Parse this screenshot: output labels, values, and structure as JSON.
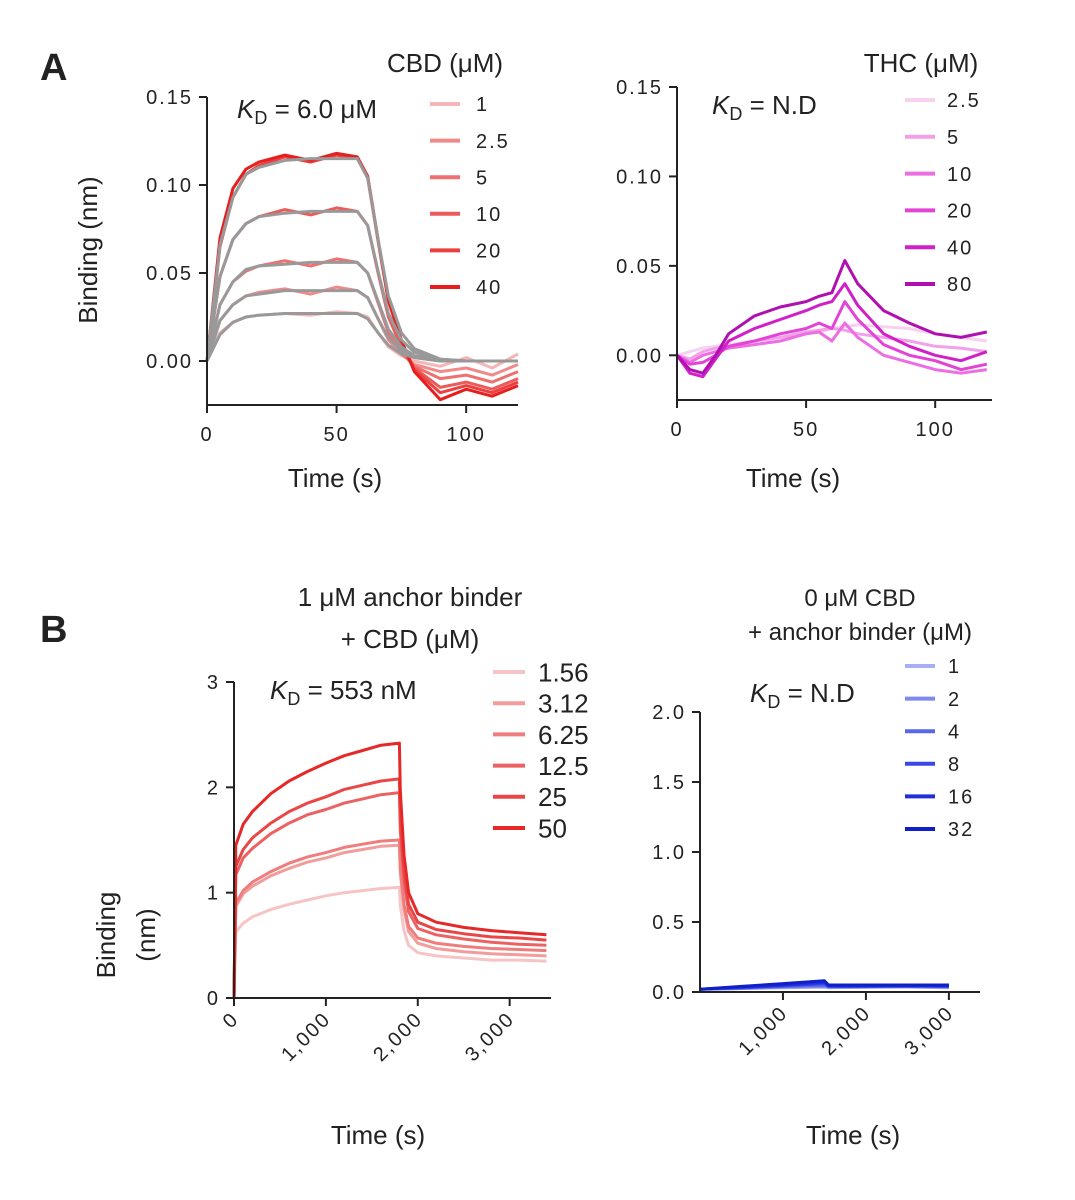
{
  "panels": [
    "A",
    "B"
  ],
  "chart_data": [
    {
      "type": "line",
      "x": [
        0,
        5,
        10,
        15,
        20,
        30,
        40,
        50,
        58,
        62,
        66,
        70,
        75,
        80,
        90,
        100,
        110,
        120
      ],
      "series": [
        {
          "name": "1",
          "color": "#f4b6b6",
          "values": [
            0,
            0.016,
            0.022,
            0.025,
            0.026,
            0.027,
            0.026,
            0.028,
            0.027,
            0.025,
            0.016,
            0.008,
            0.003,
            0.0,
            -0.003,
            0.002,
            -0.004,
            0.004
          ]
        },
        {
          "name": "2.5",
          "color": "#f08a8a",
          "values": [
            0,
            0.023,
            0.032,
            0.037,
            0.039,
            0.041,
            0.038,
            0.042,
            0.04,
            0.036,
            0.024,
            0.012,
            0.004,
            -0.002,
            -0.006,
            -0.004,
            -0.008,
            -0.002
          ]
        },
        {
          "name": "5",
          "color": "#ee7070",
          "values": [
            0,
            0.032,
            0.045,
            0.051,
            0.054,
            0.057,
            0.054,
            0.058,
            0.056,
            0.05,
            0.033,
            0.016,
            0.005,
            -0.003,
            -0.01,
            -0.008,
            -0.012,
            -0.006
          ]
        },
        {
          "name": "10",
          "color": "#ec5a5a",
          "values": [
            0,
            0.048,
            0.069,
            0.078,
            0.082,
            0.086,
            0.083,
            0.087,
            0.085,
            0.077,
            0.05,
            0.025,
            0.008,
            -0.004,
            -0.015,
            -0.012,
            -0.016,
            -0.01
          ]
        },
        {
          "name": "20",
          "color": "#ea4040",
          "values": [
            0,
            0.065,
            0.093,
            0.106,
            0.111,
            0.116,
            0.113,
            0.117,
            0.115,
            0.104,
            0.068,
            0.034,
            0.011,
            -0.005,
            -0.018,
            -0.014,
            -0.018,
            -0.012
          ]
        },
        {
          "name": "40",
          "color": "#e81e1e",
          "values": [
            0,
            0.07,
            0.098,
            0.109,
            0.113,
            0.117,
            0.114,
            0.118,
            0.116,
            0.105,
            0.069,
            0.035,
            0.012,
            -0.006,
            -0.022,
            -0.016,
            -0.02,
            -0.014
          ]
        }
      ],
      "fits": [
        {
          "color": "#999999",
          "values": [
            0,
            0.015,
            0.022,
            0.025,
            0.026,
            0.027,
            0.027,
            0.027,
            0.027,
            0.024,
            0.016,
            0.009,
            0.004,
            0.002,
            0,
            0,
            0,
            0
          ]
        },
        {
          "color": "#999999",
          "values": [
            0,
            0.023,
            0.032,
            0.037,
            0.038,
            0.04,
            0.04,
            0.04,
            0.04,
            0.036,
            0.024,
            0.013,
            0.006,
            0.002,
            0,
            0,
            0,
            0
          ]
        },
        {
          "color": "#999999",
          "values": [
            0,
            0.032,
            0.045,
            0.052,
            0.054,
            0.055,
            0.056,
            0.056,
            0.056,
            0.05,
            0.034,
            0.018,
            0.008,
            0.003,
            0.001,
            0,
            0,
            0
          ]
        },
        {
          "color": "#999999",
          "values": [
            0,
            0.048,
            0.069,
            0.078,
            0.082,
            0.084,
            0.085,
            0.085,
            0.085,
            0.077,
            0.051,
            0.027,
            0.012,
            0.005,
            0.001,
            0,
            0,
            0
          ]
        },
        {
          "color": "#999999",
          "values": [
            0,
            0.066,
            0.093,
            0.106,
            0.11,
            0.114,
            0.115,
            0.115,
            0.115,
            0.104,
            0.069,
            0.037,
            0.016,
            0.007,
            0.001,
            0,
            0,
            0
          ]
        }
      ],
      "xlim": [
        0,
        120
      ],
      "ylim": [
        -0.025,
        0.15
      ],
      "xticks": [
        0,
        50,
        100
      ],
      "yticks": [
        {
          "value": 0,
          "label": "0.00"
        },
        {
          "value": 0.05,
          "label": "0.05"
        },
        {
          "value": 0.1,
          "label": "0.10"
        },
        {
          "value": 0.15,
          "label": "0.15"
        }
      ],
      "xlabel": "Time (s)",
      "ylabel": [
        "Binding (nm)"
      ],
      "legend_title": [
        "CBD (μM)"
      ],
      "annotation": {
        "k": "K",
        "sub": "D",
        "text": " = 6.0 μM"
      }
    },
    {
      "type": "line",
      "x": [
        0,
        5,
        10,
        15,
        20,
        30,
        40,
        50,
        55,
        60,
        65,
        70,
        80,
        90,
        100,
        110,
        120
      ],
      "series": [
        {
          "name": "2.5",
          "color": "#f7d0f2",
          "values": [
            0,
            0.002,
            0.004,
            0.005,
            0.006,
            0.008,
            0.01,
            0.012,
            0.013,
            0.015,
            0.016,
            0.017,
            0.016,
            0.015,
            0.012,
            0.01,
            0.008
          ]
        },
        {
          "name": "5",
          "color": "#f2a0ea",
          "values": [
            0,
            -0.002,
            0.002,
            0.004,
            0.005,
            0.008,
            0.01,
            0.013,
            0.014,
            0.015,
            0.014,
            0.012,
            0.01,
            0.008,
            0.005,
            0.004,
            0.002
          ]
        },
        {
          "name": "10",
          "color": "#ec6ee0",
          "values": [
            0,
            -0.004,
            0.0,
            0.002,
            0.004,
            0.006,
            0.008,
            0.012,
            0.013,
            0.008,
            0.018,
            0.01,
            0.0,
            -0.004,
            -0.008,
            -0.01,
            -0.008
          ]
        },
        {
          "name": "20",
          "color": "#e245d6",
          "values": [
            0,
            -0.005,
            -0.004,
            0.0,
            0.005,
            0.008,
            0.012,
            0.015,
            0.018,
            0.015,
            0.03,
            0.02,
            0.006,
            0.0,
            -0.003,
            -0.008,
            -0.005
          ]
        },
        {
          "name": "40",
          "color": "#d020c8",
          "values": [
            0,
            -0.01,
            -0.012,
            -0.002,
            0.008,
            0.015,
            0.02,
            0.025,
            0.028,
            0.03,
            0.04,
            0.028,
            0.012,
            0.005,
            0.0,
            -0.003,
            0.002
          ]
        },
        {
          "name": "80",
          "color": "#b010b0",
          "values": [
            0,
            -0.008,
            -0.01,
            0.0,
            0.012,
            0.022,
            0.027,
            0.03,
            0.033,
            0.035,
            0.053,
            0.04,
            0.025,
            0.018,
            0.012,
            0.01,
            0.013
          ]
        }
      ],
      "xlim": [
        0,
        122
      ],
      "ylim": [
        -0.025,
        0.15
      ],
      "xticks": [
        0,
        50,
        100
      ],
      "yticks": [
        {
          "value": 0,
          "label": "0.00"
        },
        {
          "value": 0.05,
          "label": "0.05"
        },
        {
          "value": 0.1,
          "label": "0.10"
        },
        {
          "value": 0.15,
          "label": "0.15"
        }
      ],
      "xlabel": "Time (s)",
      "legend_title": [
        "THC (μM)"
      ],
      "annotation": {
        "k": "K",
        "sub": "D",
        "text": " = N.D"
      }
    },
    {
      "type": "line",
      "x": [
        0,
        20,
        100,
        200,
        400,
        600,
        800,
        1000,
        1200,
        1400,
        1600,
        1800,
        1810,
        1850,
        1900,
        2000,
        2200,
        2500,
        2800,
        3100,
        3400
      ],
      "series": [
        {
          "name": "1.56",
          "color": "#f6c4c4",
          "values": [
            0,
            0.63,
            0.71,
            0.77,
            0.84,
            0.89,
            0.93,
            0.97,
            1.0,
            1.02,
            1.04,
            1.05,
            0.88,
            0.64,
            0.5,
            0.43,
            0.4,
            0.38,
            0.36,
            0.36,
            0.35
          ]
        },
        {
          "name": "3.12",
          "color": "#f29c9c",
          "values": [
            0,
            0.87,
            0.99,
            1.06,
            1.16,
            1.23,
            1.29,
            1.33,
            1.38,
            1.41,
            1.44,
            1.45,
            1.19,
            0.84,
            0.63,
            0.52,
            0.47,
            0.44,
            0.42,
            0.41,
            0.4
          ]
        },
        {
          "name": "6.25",
          "color": "#ef7d7d",
          "values": [
            0,
            0.9,
            1.02,
            1.1,
            1.2,
            1.28,
            1.34,
            1.38,
            1.43,
            1.46,
            1.49,
            1.5,
            1.24,
            0.89,
            0.68,
            0.57,
            0.52,
            0.49,
            0.47,
            0.46,
            0.45
          ]
        },
        {
          "name": "12.5",
          "color": "#ec6262",
          "values": [
            0,
            1.17,
            1.33,
            1.42,
            1.56,
            1.66,
            1.74,
            1.79,
            1.85,
            1.89,
            1.93,
            1.95,
            1.59,
            1.11,
            0.82,
            0.66,
            0.6,
            0.56,
            0.53,
            0.51,
            0.5
          ]
        },
        {
          "name": "25",
          "color": "#ea4646",
          "values": [
            0,
            1.25,
            1.41,
            1.52,
            1.66,
            1.77,
            1.85,
            1.91,
            1.98,
            2.02,
            2.06,
            2.08,
            1.7,
            1.19,
            0.89,
            0.72,
            0.65,
            0.61,
            0.58,
            0.57,
            0.55
          ]
        },
        {
          "name": "50",
          "color": "#e62828",
          "values": [
            0,
            1.45,
            1.65,
            1.77,
            1.94,
            2.06,
            2.15,
            2.23,
            2.3,
            2.35,
            2.4,
            2.42,
            1.97,
            1.36,
            1.0,
            0.8,
            0.72,
            0.67,
            0.64,
            0.62,
            0.6
          ]
        }
      ],
      "xlim": [
        0,
        3450
      ],
      "ylim": [
        0,
        3
      ],
      "xticks": [
        0,
        {
          "value": 1000,
          "label": "1,000"
        },
        {
          "value": 2000,
          "label": "2,000"
        },
        {
          "value": 3000,
          "label": "3,000"
        }
      ],
      "yticks": [
        0,
        1,
        2,
        3
      ],
      "xlabel": "Time (s)",
      "ylabel": [
        "Binding",
        "(nm)"
      ],
      "legend_title": [
        "1 μM anchor binder",
        "+ CBD (μM)"
      ],
      "annotation": {
        "k": "K",
        "sub": "D",
        "text": " = 553 nM"
      }
    },
    {
      "type": "line",
      "x": [
        0,
        500,
        1000,
        1500,
        1550,
        2000,
        2500,
        3000
      ],
      "series": [
        {
          "name": "1",
          "color": "#a8b0f5",
          "values": [
            0.02,
            0.025,
            0.03,
            0.035,
            0.03,
            0.035,
            0.035,
            0.03
          ]
        },
        {
          "name": "2",
          "color": "#7f88ef",
          "values": [
            0.02,
            0.025,
            0.035,
            0.04,
            0.035,
            0.035,
            0.04,
            0.035
          ]
        },
        {
          "name": "4",
          "color": "#5a66ea",
          "values": [
            0.02,
            0.03,
            0.04,
            0.05,
            0.04,
            0.04,
            0.04,
            0.04
          ]
        },
        {
          "name": "8",
          "color": "#3a46e6",
          "values": [
            0.02,
            0.03,
            0.045,
            0.06,
            0.04,
            0.04,
            0.045,
            0.04
          ]
        },
        {
          "name": "16",
          "color": "#2030d8",
          "values": [
            0.02,
            0.035,
            0.05,
            0.07,
            0.045,
            0.045,
            0.045,
            0.045
          ]
        },
        {
          "name": "32",
          "color": "#1020c8",
          "values": [
            0.02,
            0.04,
            0.06,
            0.08,
            0.05,
            0.05,
            0.05,
            0.05
          ]
        }
      ],
      "xlim": [
        0,
        3375
      ],
      "ylim": [
        0,
        2
      ],
      "xticks": [
        {
          "value": 1000,
          "label": "1,000"
        },
        {
          "value": 2000,
          "label": "2,000"
        },
        {
          "value": 3000,
          "label": "3,000"
        }
      ],
      "yticks": [
        {
          "value": 0,
          "label": "0.0"
        },
        {
          "value": 0.5,
          "label": "0.5"
        },
        {
          "value": 1,
          "label": "1.0"
        },
        {
          "value": 1.5,
          "label": "1.5"
        },
        {
          "value": 2,
          "label": "2.0"
        }
      ],
      "xlabel": "Time (s)",
      "legend_title": [
        "0 μM CBD",
        "+ anchor binder (μM)"
      ],
      "annotation": {
        "k": "K",
        "sub": "D",
        "text": " = N.D"
      }
    }
  ]
}
